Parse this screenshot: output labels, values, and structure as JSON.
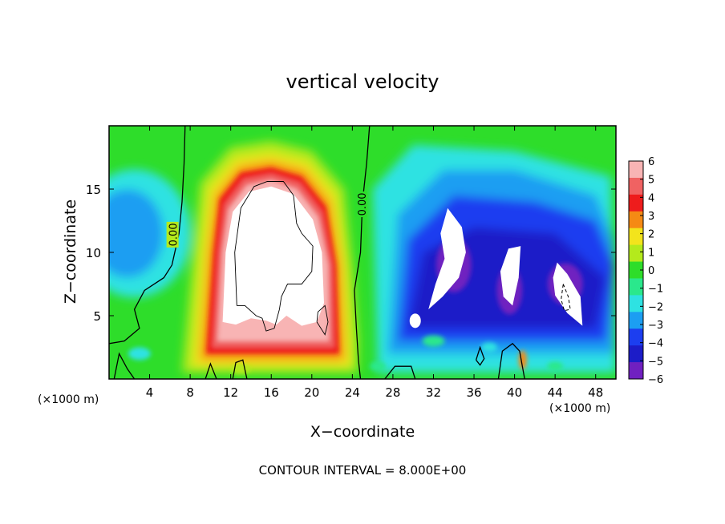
{
  "chart_data": {
    "type": "heatmap",
    "title": "vertical velocity",
    "xlabel": "X−coordinate",
    "ylabel": "Z−coordinate",
    "x_unit_label_left": "(×1000 m)",
    "x_unit_label_right": "(×1000 m)",
    "footer": "CONTOUR INTERVAL = 8.000E+00",
    "xlim": [
      0,
      50
    ],
    "ylim": [
      0,
      20
    ],
    "x_ticks": [
      4,
      8,
      12,
      16,
      20,
      24,
      28,
      32,
      36,
      40,
      44,
      48
    ],
    "y_ticks": [
      5,
      10,
      15
    ],
    "colorbar": {
      "levels": [
        "6",
        "5",
        "4",
        "3",
        "2",
        "1",
        "0",
        "−1",
        "−2",
        "−3",
        "−4",
        "−5",
        "−6"
      ],
      "colors": [
        "#f8b4b4",
        "#f06262",
        "#ee1c1c",
        "#f58a14",
        "#f3e41c",
        "#b4ea1c",
        "#2edd2a",
        "#2ae88c",
        "#2ee2e2",
        "#1c9ef2",
        "#1c3ef0",
        "#1c1cc8",
        "#7020c0"
      ],
      "range": [
        -6,
        6
      ]
    },
    "contour_labels": [
      "0.00",
      "0.00"
    ],
    "features": {
      "updraft_core_center": [
        15.5,
        11
      ],
      "downdraft_region_x": [
        26,
        50
      ]
    }
  }
}
